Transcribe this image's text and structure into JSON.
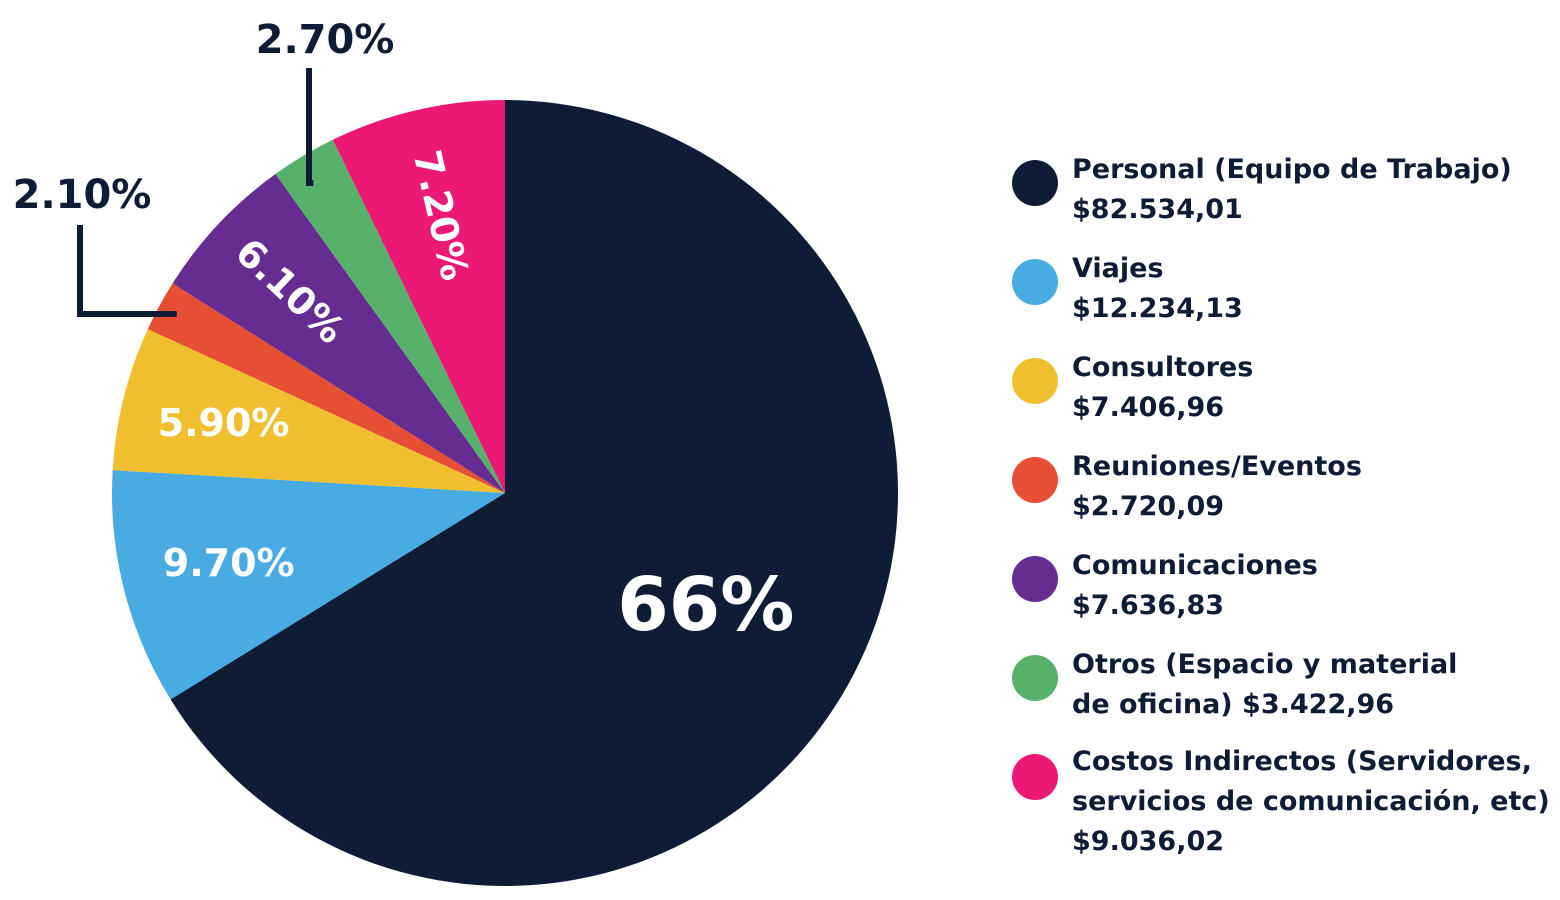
{
  "chart_data": {
    "type": "pie",
    "start": "top, clockwise",
    "slices": [
      {
        "label": "Personal (Equipo de Trabajo)",
        "value": 66,
        "display": "66%",
        "amount": "$82.534,01",
        "color": "#0f1c36"
      },
      {
        "label": "Viajes",
        "value": 9.7,
        "display": "9.70%",
        "amount": "$12.234,13",
        "color": "#48abe2"
      },
      {
        "label": "Consultores",
        "value": 5.9,
        "display": "5.90%",
        "amount": "$7.406,96",
        "color": "#f0bf30"
      },
      {
        "label": "Reuniones/Eventos",
        "value": 2.1,
        "display": "2.10%",
        "amount": "$2.720,09",
        "color": "#e74f35"
      },
      {
        "label": "Comunicaciones",
        "value": 6.1,
        "display": "6.10%",
        "amount": "$7.636,83",
        "color": "#652c91"
      },
      {
        "label": "Otros (Espacio y material de oficina)",
        "value": 2.7,
        "display": "2.70%",
        "amount": "$3.422,96",
        "color": "#57b16a"
      },
      {
        "label": "Costos Indirectos (Servidores, servicios de comunicación, etc)",
        "value": 7.2,
        "display": "7.20%",
        "amount": "$9.036,02",
        "color": "#ec1875"
      }
    ]
  },
  "legend": [
    {
      "text": "Personal (Equipo de Trabajo)\n$82.534,01"
    },
    {
      "text": "Viajes\n$12.234,13"
    },
    {
      "text": "Consultores\n$7.406,96"
    },
    {
      "text": "Reuniones/Eventos\n$2.720,09"
    },
    {
      "text": "Comunicaciones\n$7.636,83"
    },
    {
      "text": "Otros (Espacio y material\nde oficina) $3.422,96"
    },
    {
      "text": "Costos Indirectos (Servidores,\nservicios de comunicación, etc)\n$9.036,02"
    }
  ]
}
